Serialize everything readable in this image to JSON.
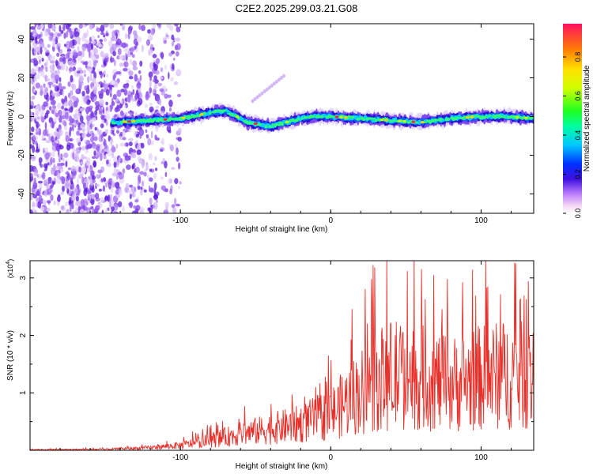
{
  "title": "C2E2.2025.299.03.21.G08",
  "chart_data": [
    {
      "type": "heatmap",
      "name": "spectrogram",
      "xlabel": "Height of straight line (km)",
      "ylabel": "Frequency (Hz)",
      "xlim": [
        -200,
        135
      ],
      "ylim": [
        -50,
        48
      ],
      "xticks": [
        -100,
        0,
        100
      ],
      "yticks": [
        40,
        20,
        0,
        -20,
        -40
      ],
      "ridge": {
        "description_points_x": [
          -145,
          -120,
          -100,
          -80,
          -70,
          -65,
          -55,
          -40,
          -30,
          -20,
          -10,
          0,
          20,
          40,
          60,
          80,
          100,
          120,
          135
        ],
        "description_points_y": [
          -3,
          -2,
          -1,
          2,
          3,
          1,
          -3,
          -5,
          -3,
          -1,
          0,
          0,
          -1,
          -2,
          -3,
          -1,
          0,
          0,
          -1
        ]
      },
      "colorbar": {
        "label": "Normalized spectral amplitude",
        "ticks": [
          0.0,
          0.2,
          0.4,
          0.6,
          0.8
        ],
        "range": [
          0,
          0.97
        ]
      }
    },
    {
      "type": "line",
      "name": "snr",
      "xlabel": "Height of straight line (km)",
      "ylabel": "SNR (10 * v/v)",
      "multiplier_label": "(x10",
      "multiplier_exp": "4",
      "xlim": [
        -200,
        135
      ],
      "ylim": [
        0,
        3.3
      ],
      "xticks": [
        -100,
        0,
        100
      ],
      "yticks": [
        3,
        2,
        1
      ],
      "color": "#e8302a",
      "envelope_x": [
        -200,
        -150,
        -120,
        -100,
        -80,
        -60,
        -40,
        -20,
        0,
        20,
        40,
        60,
        80,
        100,
        120,
        135
      ],
      "envelope_y": [
        0.02,
        0.03,
        0.08,
        0.15,
        0.3,
        0.5,
        0.65,
        0.8,
        1.1,
        1.8,
        2.3,
        2.2,
        2.0,
        2.2,
        2.3,
        2.2
      ]
    }
  ]
}
